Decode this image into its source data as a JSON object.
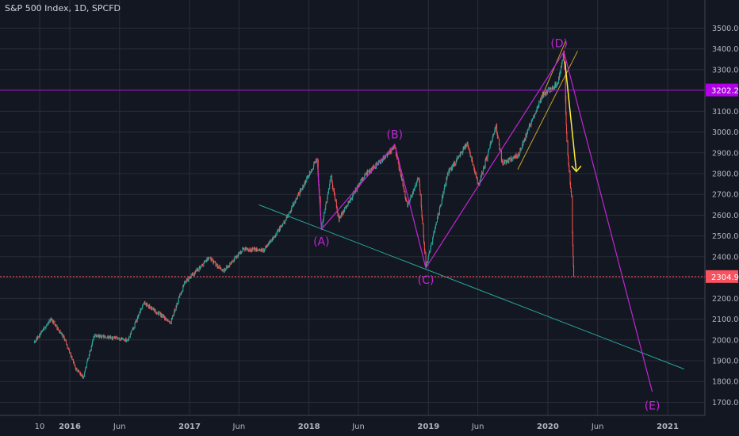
{
  "header": {
    "title": "S&P 500 Index, 1D, SPCFD"
  },
  "colors": {
    "background": "#131722",
    "grid": "#2a2e39",
    "axis_text": "#b2b5be",
    "candle_up": "#26a69a",
    "candle_down": "#ef5350",
    "wave_lines": "#c026d3",
    "resistance": "#b100e8",
    "support": "#f7525f",
    "trendline": "#26a69a",
    "channel": "#c9a227",
    "arrow": "#ffeb3b"
  },
  "chart_data": {
    "type": "candlestick",
    "title": "S&P 500 Index, 1D, SPCFD",
    "y_axis": {
      "ticks": [
        "3500.00",
        "3400.00",
        "3300.00",
        "3200.00",
        "3100.00",
        "3000.00",
        "2900.00",
        "2800.00",
        "2700.00",
        "2600.00",
        "2500.00",
        "2400.00",
        "2300.00",
        "2200.00",
        "2100.00",
        "2000.00",
        "1900.00",
        "1800.00",
        "1700.00"
      ],
      "ylim": [
        1675,
        3540
      ]
    },
    "x_axis": {
      "ticks": [
        "10",
        "2016",
        "Jun",
        "2017",
        "Jun",
        "2018",
        "Jun",
        "2019",
        "Jun",
        "2020",
        "Jun",
        "2021"
      ]
    },
    "price_path": [
      [
        "2015-09-15",
        1990
      ],
      [
        "2015-11-05",
        2100
      ],
      [
        "2015-12-15",
        2010
      ],
      [
        "2016-01-20",
        1860
      ],
      [
        "2016-02-11",
        1820
      ],
      [
        "2016-03-15",
        2020
      ],
      [
        "2016-06-27",
        2000
      ],
      [
        "2016-08-15",
        2180
      ],
      [
        "2016-11-04",
        2085
      ],
      [
        "2016-12-15",
        2270
      ],
      [
        "2017-03-01",
        2395
      ],
      [
        "2017-04-15",
        2330
      ],
      [
        "2017-06-15",
        2440
      ],
      [
        "2017-08-15",
        2430
      ],
      [
        "2017-10-15",
        2560
      ],
      [
        "2018-01-26",
        2872
      ],
      [
        "2018-02-08",
        2532
      ],
      [
        "2018-03-09",
        2786
      ],
      [
        "2018-04-02",
        2581
      ],
      [
        "2018-06-15",
        2780
      ],
      [
        "2018-09-20",
        2930
      ],
      [
        "2018-10-29",
        2640
      ],
      [
        "2018-12-03",
        2790
      ],
      [
        "2018-12-24",
        2351
      ],
      [
        "2019-03-01",
        2800
      ],
      [
        "2019-04-30",
        2945
      ],
      [
        "2019-06-03",
        2745
      ],
      [
        "2019-07-26",
        3025
      ],
      [
        "2019-08-15",
        2850
      ],
      [
        "2019-10-03",
        2890
      ],
      [
        "2019-12-15",
        3180
      ],
      [
        "2020-01-31",
        3230
      ],
      [
        "2020-02-19",
        3386
      ],
      [
        "2020-02-28",
        2950
      ],
      [
        "2020-03-09",
        2750
      ],
      [
        "2020-03-13",
        2700
      ],
      [
        "2020-03-18",
        2400
      ],
      [
        "2020-03-20",
        2305
      ]
    ],
    "horizontal_levels": [
      {
        "value": 3202.23,
        "label": "3202.23",
        "color": "#b100e8"
      },
      {
        "value": 2304.93,
        "label": "2304.93",
        "color": "#f7525f"
      }
    ],
    "wave_points": [
      {
        "label": "(A)",
        "date": "2018-02-08",
        "value": 2532
      },
      {
        "label": "(B)",
        "date": "2018-09-20",
        "value": 2940
      },
      {
        "label": "(C)",
        "date": "2018-12-24",
        "value": 2346
      },
      {
        "label": "(D)",
        "date": "2020-02-19",
        "value": 3386
      },
      {
        "label": "(E)",
        "date": "2020-11-15",
        "value": 1750
      }
    ],
    "wave_lines": [
      {
        "from": [
          "2018-01-26",
          2872
        ],
        "to": [
          "2018-02-08",
          2532
        ]
      },
      {
        "from": [
          "2018-02-08",
          2532
        ],
        "to": [
          "2018-09-20",
          2940
        ]
      },
      {
        "from": [
          "2018-09-20",
          2940
        ],
        "to": [
          "2018-12-24",
          2346
        ]
      },
      {
        "from": [
          "2018-12-24",
          2346
        ],
        "to": [
          "2020-02-19",
          3386
        ]
      },
      {
        "from": [
          "2020-02-19",
          3386
        ],
        "to": [
          "2020-11-15",
          1750
        ]
      }
    ],
    "trendline": {
      "from": [
        "2017-08-01",
        2650
      ],
      "to": [
        "2021-02-20",
        1860
      ]
    },
    "channel_lines": [
      {
        "from": [
          "2019-10-01",
          2820
        ],
        "to": [
          "2020-04-01",
          3390
        ]
      },
      {
        "from": [
          "2019-12-15",
          3175
        ],
        "to": [
          "2020-02-25",
          3440
        ]
      }
    ],
    "arrow": {
      "from": [
        "2020-02-22",
        3340
      ],
      "to": [
        "2020-03-28",
        2810
      ]
    }
  }
}
